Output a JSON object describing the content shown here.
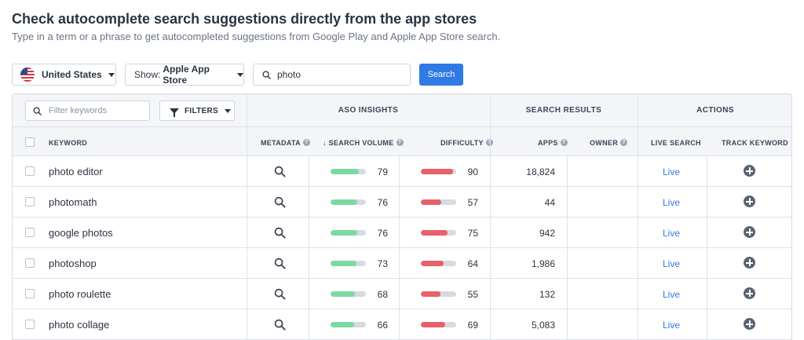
{
  "header": {
    "title": "Check autocomplete search suggestions directly from the app stores",
    "subtitle": "Type in a term or a phrase to get autocompleted suggestions from Google Play and Apple App Store search."
  },
  "controls": {
    "country_label": "United States",
    "store_prefix": "Show:",
    "store_value": "Apple App Store",
    "search_value": "photo",
    "search_button": "Search"
  },
  "table": {
    "filter_placeholder": "Filter keywords",
    "filters_label": "FILTERS",
    "groups": {
      "aso": "ASO INSIGHTS",
      "search_results": "SEARCH RESULTS",
      "actions": "ACTIONS"
    },
    "columns": {
      "keyword": "KEYWORD",
      "metadata": "METADATA",
      "search_volume": "↓ SEARCH VOLUME",
      "difficulty": "DIFFICULTY",
      "apps": "APPS",
      "owner": "OWNER",
      "live_search": "LIVE SEARCH",
      "track_keyword": "TRACK KEYWORD"
    },
    "live_label": "Live",
    "colors": {
      "volume": "#7dd9a3",
      "difficulty": "#e8606c",
      "track": "#d6dae1"
    },
    "rows": [
      {
        "keyword": "photo editor",
        "volume": "79",
        "difficulty": "90",
        "apps": "18,824"
      },
      {
        "keyword": "photomath",
        "volume": "76",
        "difficulty": "57",
        "apps": "44"
      },
      {
        "keyword": "google photos",
        "volume": "76",
        "difficulty": "75",
        "apps": "942"
      },
      {
        "keyword": "photoshop",
        "volume": "73",
        "difficulty": "64",
        "apps": "1,986"
      },
      {
        "keyword": "photo roulette",
        "volume": "68",
        "difficulty": "55",
        "apps": "132"
      },
      {
        "keyword": "photo collage",
        "volume": "66",
        "difficulty": "69",
        "apps": "5,083"
      }
    ]
  }
}
